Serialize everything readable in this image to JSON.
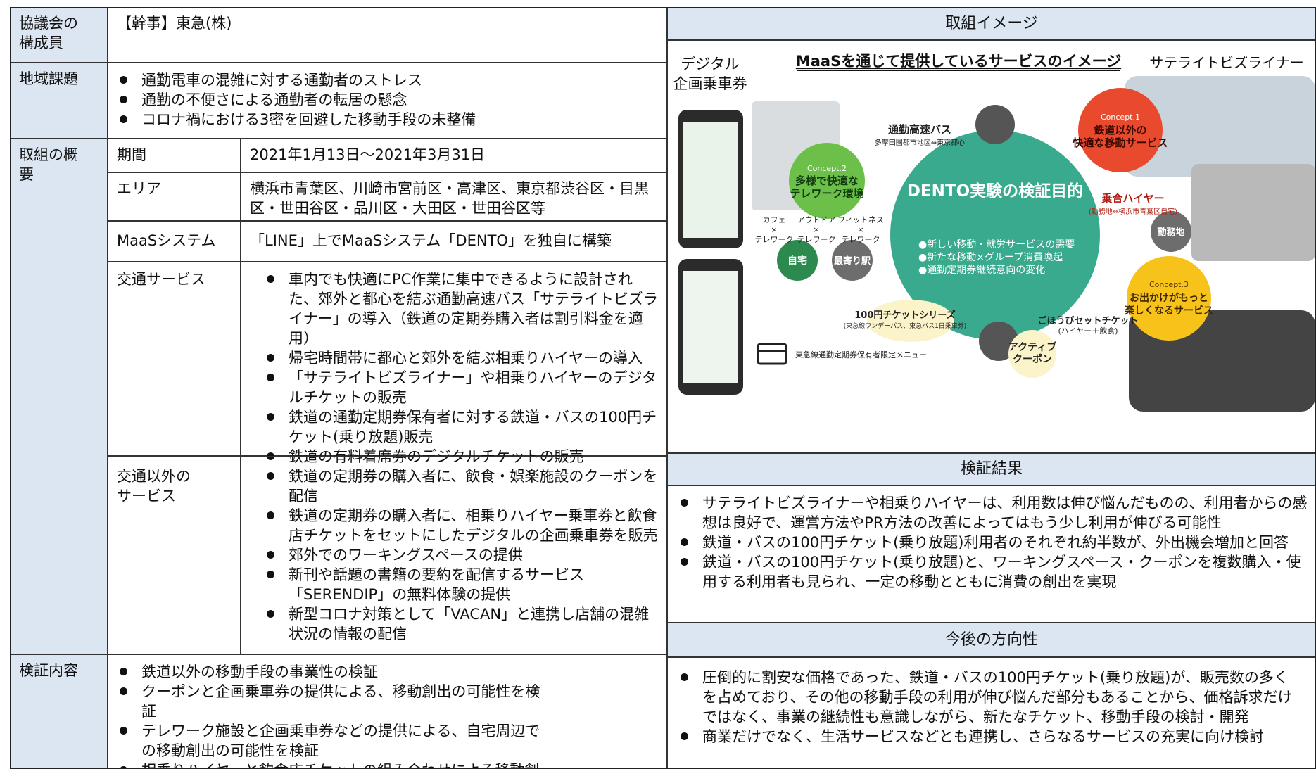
{
  "table": {
    "rows": [
      {
        "label": "協議会の構成員",
        "content": "【幹事】東急(株)"
      },
      {
        "label": "地域課題",
        "bullets": [
          "通勤電車の混雑に対する通勤者のストレス",
          "通勤の不便さによる通勤者の転居の懸念",
          "コロナ禍における3密を回避した移動手段の未整備"
        ]
      },
      {
        "label": "取組の概要",
        "subrows": [
          {
            "label": [
              "期間"
            ],
            "content": "2021年1月13日～2021年3月31日"
          },
          {
            "label": [
              "エリア"
            ],
            "content": "横浜市青葉区、川崎市宮前区・高津区、東京都渋谷区・目黒区・世田谷区・品川区・大田区・世田谷区等"
          },
          {
            "label": [
              "MaaSシステム"
            ],
            "content": "「LINE」上でMaaSシステム「DENTO」を独自に構築"
          },
          {
            "label": [
              "交通サービス"
            ],
            "bullets": [
              "車内でも快適にPC作業に集中できるように設計された、郊外と都心を結ぶ通勤高速バス「サテライトビズライナー」の導入（鉄道の定期券購入者は割引料金を適用）",
              "帰宅時間帯に都心と郊外を結ぶ相乗りハイヤーの導入",
              "「サテライトビズライナー」や相乗りハイヤーのデジタルチケットの販売",
              "鉄道の通勤定期券保有者に対する鉄道・バスの100円チケット(乗り放題)販売",
              "鉄道の有料着席券のデジタルチケットの販売"
            ]
          },
          {
            "label": [
              "交通以外の",
              "サービス"
            ],
            "bullets": [
              "鉄道の定期券の購入者に、飲食・娯楽施設のクーポンを配信",
              "鉄道の定期券の購入者に、相乗りハイヤー乗車券と飲食店チケットをセットにしたデジタルの企画乗車券を販売",
              "郊外でのワーキングスペースの提供",
              "新刊や話題の書籍の要約を配信するサービス「SERENDIP」の無料体験の提供",
              "新型コロナ対策として「VACAN」と連携し店舗の混雑状況の情報の配信"
            ]
          }
        ]
      },
      {
        "label": "検証内容",
        "bullets": [
          "鉄道以外の移動手段の事業性の検証",
          "クーポンと企画乗車券の提供による、移動創出の可能性を検証",
          "テレワーク施設と企画乗車券などの提供による、自宅周辺での移動創出の可能性を検証",
          "相乗りハイヤーと飲食店チケットの組み合わせによる移動創出の可能性検証"
        ]
      }
    ]
  },
  "image_panel": {
    "header": "取組イメージ",
    "title": "MaaSを通じて提供しているサービスのイメージ",
    "phone_label": [
      "デジタル",
      "企画乗車券"
    ],
    "bus_label": "サテライトビズライナー",
    "center_title": "DENTO実験の検証目的",
    "center_bullets": [
      "●新しい移動・就労サービスの需要",
      "●新たな移動×グループ消費喚起",
      "●通勤定期券継続意向の変化"
    ],
    "concepts": [
      {
        "tag": "Concept.1",
        "lines": [
          "鉄道以外の",
          "快適な移動サービス"
        ]
      },
      {
        "tag": "Concept.2",
        "lines": [
          "多様で快適な",
          "テレワーク環境"
        ]
      },
      {
        "tag": "Concept.3",
        "lines": [
          "お出かけがもっと",
          "楽しくなるサービス"
        ]
      }
    ],
    "services": [
      {
        "name": "通勤高速バス",
        "note": "多摩田園都市地区⇔東京都心"
      },
      {
        "name": "乗合ハイヤー",
        "note": "(勤務地⇔横浜市青葉区自宅)"
      },
      {
        "name": "100円チケットシリーズ",
        "note": "(東急線ワンデーパス、東急バス1日乗車券)"
      },
      {
        "name": "ごほうびセットチケット",
        "note": "(ハイヤー＋飲食)"
      }
    ],
    "coupon": [
      "アクティブ",
      "クーポン"
    ],
    "workstyles": [
      [
        "カフェ",
        "×",
        "テレワーク"
      ],
      [
        "アウトドア",
        "×",
        "テレワーク"
      ],
      [
        "フィットネス",
        "×",
        "テレワーク"
      ]
    ],
    "places": [
      "自宅",
      "最寄り駅",
      "勤務地"
    ],
    "menu_note": "東急線通勤定期券保有者限定メニュー"
  },
  "results": {
    "header": "検証結果",
    "bullets": [
      "サテライトビズライナーや相乗りハイヤーは、利用数は伸び悩んだものの、利用者からの感想は良好で、運営方法やPR方法の改善によってはもう少し利用が伸びる可能性",
      "鉄道・バスの100円チケット(乗り放題)利用者のそれぞれ約半数が、外出機会増加と回答",
      "鉄道・バスの100円チケット(乗り放題)と、ワーキングスペース・クーポンを複数購入・使用する利用者も見られ、一定の移動とともに消費の創出を実現"
    ]
  },
  "direction": {
    "header": "今後の方向性",
    "bullets": [
      "圧倒的に割安な価格であった、鉄道・バスの100円チケット(乗り放題)が、販売数の多くを占めており、その他の移動手段の利用が伸び悩んだ部分もあることから、価格訴求だけではなく、事業の継続性も意識しながら、新たなチケット、移動手段の検討・開発",
      "商業だけでなく、生活サービスなどとも連携し、さらなるサービスの充実に向け検討"
    ]
  }
}
